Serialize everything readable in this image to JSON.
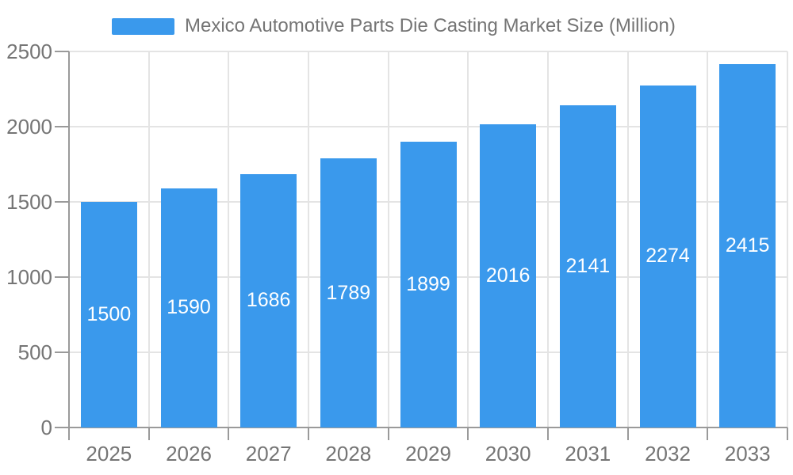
{
  "legend": {
    "label": "Mexico Automotive Parts Die Casting Market Size (Million)"
  },
  "chart_data": {
    "type": "bar",
    "title": "Mexico Automotive Parts Die Casting Market Size (Million)",
    "categories": [
      "2025",
      "2026",
      "2027",
      "2028",
      "2029",
      "2030",
      "2031",
      "2032",
      "2033"
    ],
    "series": [
      {
        "name": "Mexico Automotive Parts Die Casting Market Size (Million)",
        "values": [
          1500,
          1590,
          1686,
          1789,
          1899,
          2016,
          2141,
          2274,
          2415
        ]
      }
    ],
    "xlabel": "",
    "ylabel": "",
    "ylim": [
      0,
      2500
    ],
    "y_ticks": [
      0,
      500,
      1000,
      1500,
      2000,
      2500
    ],
    "grid": true,
    "legend_position": "top",
    "data_labels_position": "inside-center",
    "colors": {
      "bar": "#3A99EC",
      "axis_text": "#757575",
      "value_label": "#FFFFFF",
      "grid_line": "#E4E4E4",
      "axis_line": "#9A9A9A",
      "background": "#FFFFFF"
    }
  }
}
